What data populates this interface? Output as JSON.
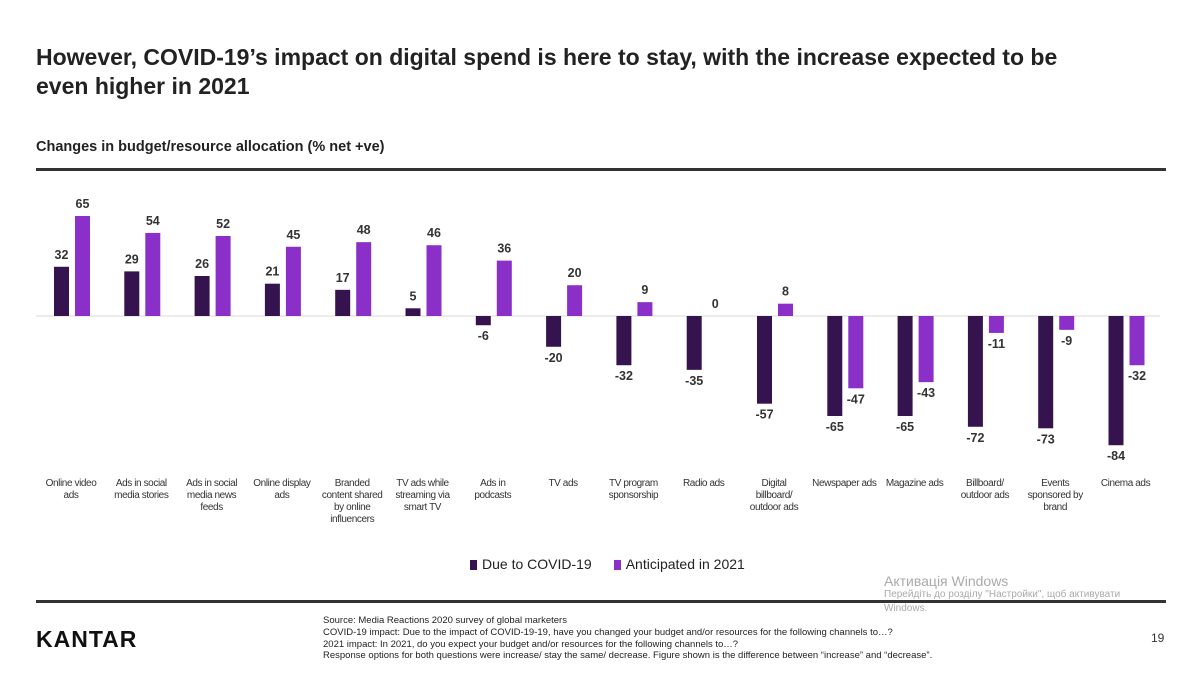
{
  "title": "However, COVID-19’s impact on digital spend is here to stay, with the increase expected to be even higher in 2021",
  "subtitle": "Changes in budget/resource allocation (% net +ve)",
  "colors": {
    "covid": "#34134f",
    "anticipated": "#8a2fc8"
  },
  "chart_data": {
    "type": "bar",
    "title": "Changes in budget/resource allocation (% net +ve)",
    "categories": [
      "Online video ads",
      "Ads in social media stories",
      "Ads in social media news feeds",
      "Online display ads",
      "Branded content shared by online influencers",
      "TV ads while streaming via smart TV",
      "Ads in podcasts",
      "TV ads",
      "TV program sponsorship",
      "Radio ads",
      "Digital billboard/ outdoor ads",
      "Newspaper ads",
      "Magazine ads",
      "Billboard/ outdoor ads",
      "Events sponsored by brand",
      "Cinema ads"
    ],
    "category_lines": [
      [
        "Online video",
        "ads"
      ],
      [
        "Ads in social",
        "media stories"
      ],
      [
        "Ads in social",
        "media news",
        "feeds"
      ],
      [
        "Online display",
        "ads"
      ],
      [
        "Branded",
        "content shared",
        "by online",
        "influencers"
      ],
      [
        "TV ads while",
        "streaming via",
        "smart TV"
      ],
      [
        "Ads in",
        "podcasts"
      ],
      [
        "TV ads"
      ],
      [
        "TV program",
        "sponsorship"
      ],
      [
        "Radio ads"
      ],
      [
        "Digital",
        "billboard/",
        "outdoor ads"
      ],
      [
        "Newspaper ads"
      ],
      [
        "Magazine ads"
      ],
      [
        "Billboard/",
        "outdoor ads"
      ],
      [
        "Events",
        "sponsored by",
        "brand"
      ],
      [
        "Cinema ads"
      ]
    ],
    "series": [
      {
        "name": "Due to COVID-19",
        "values": [
          32,
          29,
          26,
          21,
          17,
          5,
          -6,
          -20,
          -32,
          -35,
          -57,
          -65,
          -65,
          -72,
          -73,
          -84
        ]
      },
      {
        "name": "Anticipated in 2021",
        "values": [
          65,
          54,
          52,
          45,
          48,
          46,
          36,
          20,
          9,
          0,
          8,
          -47,
          -43,
          -11,
          -9,
          -32
        ]
      }
    ],
    "legend": "bottom",
    "grid": false
  },
  "logo": "KANTAR",
  "notes": [
    "Source: Media Reactions 2020 survey of global marketers",
    "COVID-19 impact: Due to the impact of COVID-19-19, have you changed your budget and/or resources for the following channels to…?",
    "2021 impact: In 2021, do you expect your budget and/or resources for the following channels to…?",
    "Response options for both questions were increase/ stay the same/ decrease. Figure shown is the difference between “increase” and “decrease”."
  ],
  "page_number": "19",
  "watermark": {
    "line1": "Активація Windows",
    "line2": "Перейдіть до розділу \"Настройки\", щоб активувати",
    "line3": "Windows."
  }
}
